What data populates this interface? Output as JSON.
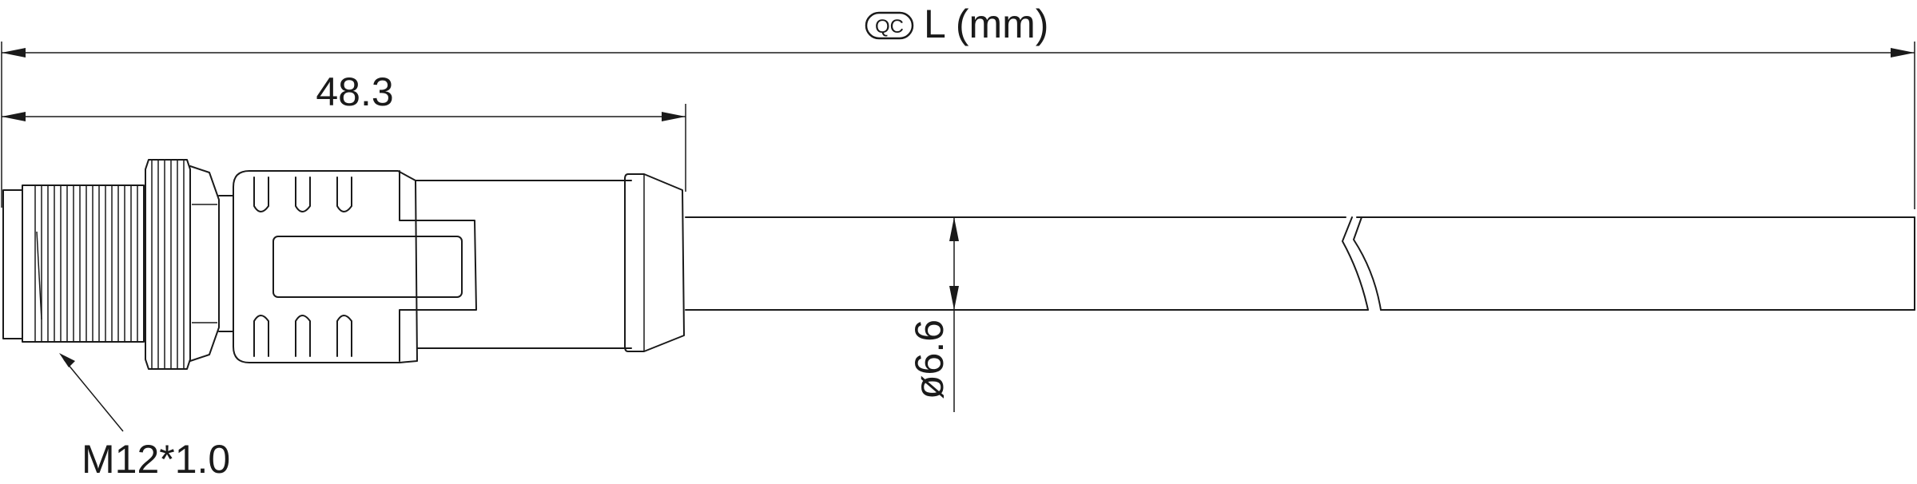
{
  "dimensions": {
    "overall_length": {
      "badge": "QC",
      "label": "L (mm)"
    },
    "connector_length": {
      "value": "48.3"
    },
    "cable_diameter": {
      "value": "ø6.6"
    },
    "thread": {
      "value": "M12*1.0"
    }
  },
  "colors": {
    "line": "#1a1a1a",
    "background": "#ffffff"
  }
}
